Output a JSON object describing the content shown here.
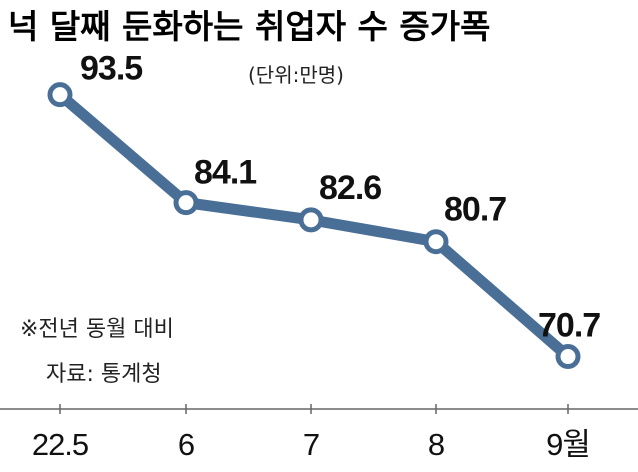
{
  "chart_data": {
    "type": "line",
    "title": "넉 달째 둔화하는 취업자 수 증가폭",
    "unit_label": "(단위:만명)",
    "categories": [
      "22.5",
      "6",
      "7",
      "8",
      "9월"
    ],
    "values": [
      93.5,
      84.1,
      82.6,
      80.7,
      70.7
    ],
    "data_labels": [
      "93.5",
      "84.1",
      "82.6",
      "80.7",
      "70.7"
    ],
    "notes": [
      "※전년 동월 대비",
      "자료: 통계청"
    ],
    "ylim": [
      63,
      100
    ],
    "grid": false,
    "line_color": "#4a6f96",
    "marker_fill": "#ffffff"
  }
}
